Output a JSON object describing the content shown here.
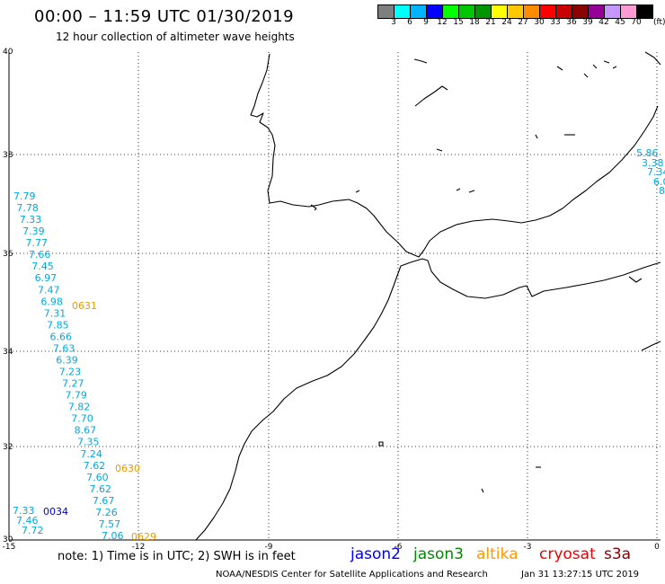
{
  "header": {
    "title": "00:00 – 11:59 UTC 01/30/2019",
    "subtitle": "12 hour collection of altimeter wave heights"
  },
  "colorbar": {
    "colors": [
      "#7f7f7f",
      "#00ffff",
      "#00b4ff",
      "#0000ff",
      "#00ff00",
      "#00c800",
      "#009600",
      "#ffff00",
      "#ffc800",
      "#ff8c00",
      "#ff0000",
      "#c80000",
      "#8b0000",
      "#960096",
      "#c896ff",
      "#ff9bd2",
      "#000000"
    ],
    "labels": [
      "3",
      "6",
      "9",
      "12",
      "15",
      "18",
      "21",
      "24",
      "27",
      "30",
      "33",
      "36",
      "39",
      "42",
      "45",
      "70"
    ],
    "units": "(ft)"
  },
  "axes": {
    "lat_labels": [
      "40",
      "38",
      "36",
      "34",
      "32",
      "30"
    ],
    "lon_labels": [
      "-15",
      "-12",
      "-9",
      "-6",
      "-3",
      "0"
    ]
  },
  "wave_colors": {
    "jason3": "#00aadd",
    "altika": "#ee9900",
    "jason2": "#0000cc"
  },
  "wave_heights": {
    "track_west": [
      "7.79",
      "7.78",
      "7.33",
      "7.39",
      "7.77",
      "7.66",
      "7.45",
      "6.97",
      "7.47",
      "6.98",
      "7.31",
      "7.85",
      "6.66",
      "7.63",
      "6.39",
      "7.23",
      "7.27",
      "7.79",
      "7.82",
      "7.70",
      "8.67",
      "7.35",
      "7.24",
      "7.62",
      "7.60",
      "7.62",
      "7.67",
      "7.26",
      "7.57",
      "7.06"
    ],
    "track_sw": [
      "7.33",
      "7.46",
      "7.72"
    ],
    "track_east": [
      "5.86",
      "3.38",
      "7.34",
      "6.0",
      "8"
    ]
  },
  "time_labels": {
    "t1": "0631",
    "t2": "0630",
    "t3": "0629",
    "t4": "0034"
  },
  "footer": {
    "note": "note: 1) Time is in UTC; 2) SWH is in feet",
    "sats": {
      "jason2": "jason2",
      "jason3": "jason3",
      "altika": "altika",
      "cryosat": "cryosat",
      "s3a": "s3a"
    },
    "sat_colors": {
      "jason2": "#0000ff",
      "jason3": "#008800",
      "altika": "#ff9900",
      "cryosat": "#ee0000",
      "s3a": "#880000"
    },
    "credit": "NOAA/NESDIS Center for Satellite Applications and Research",
    "timestamp": "Jan 31 13:27:15 UTC 2019"
  }
}
